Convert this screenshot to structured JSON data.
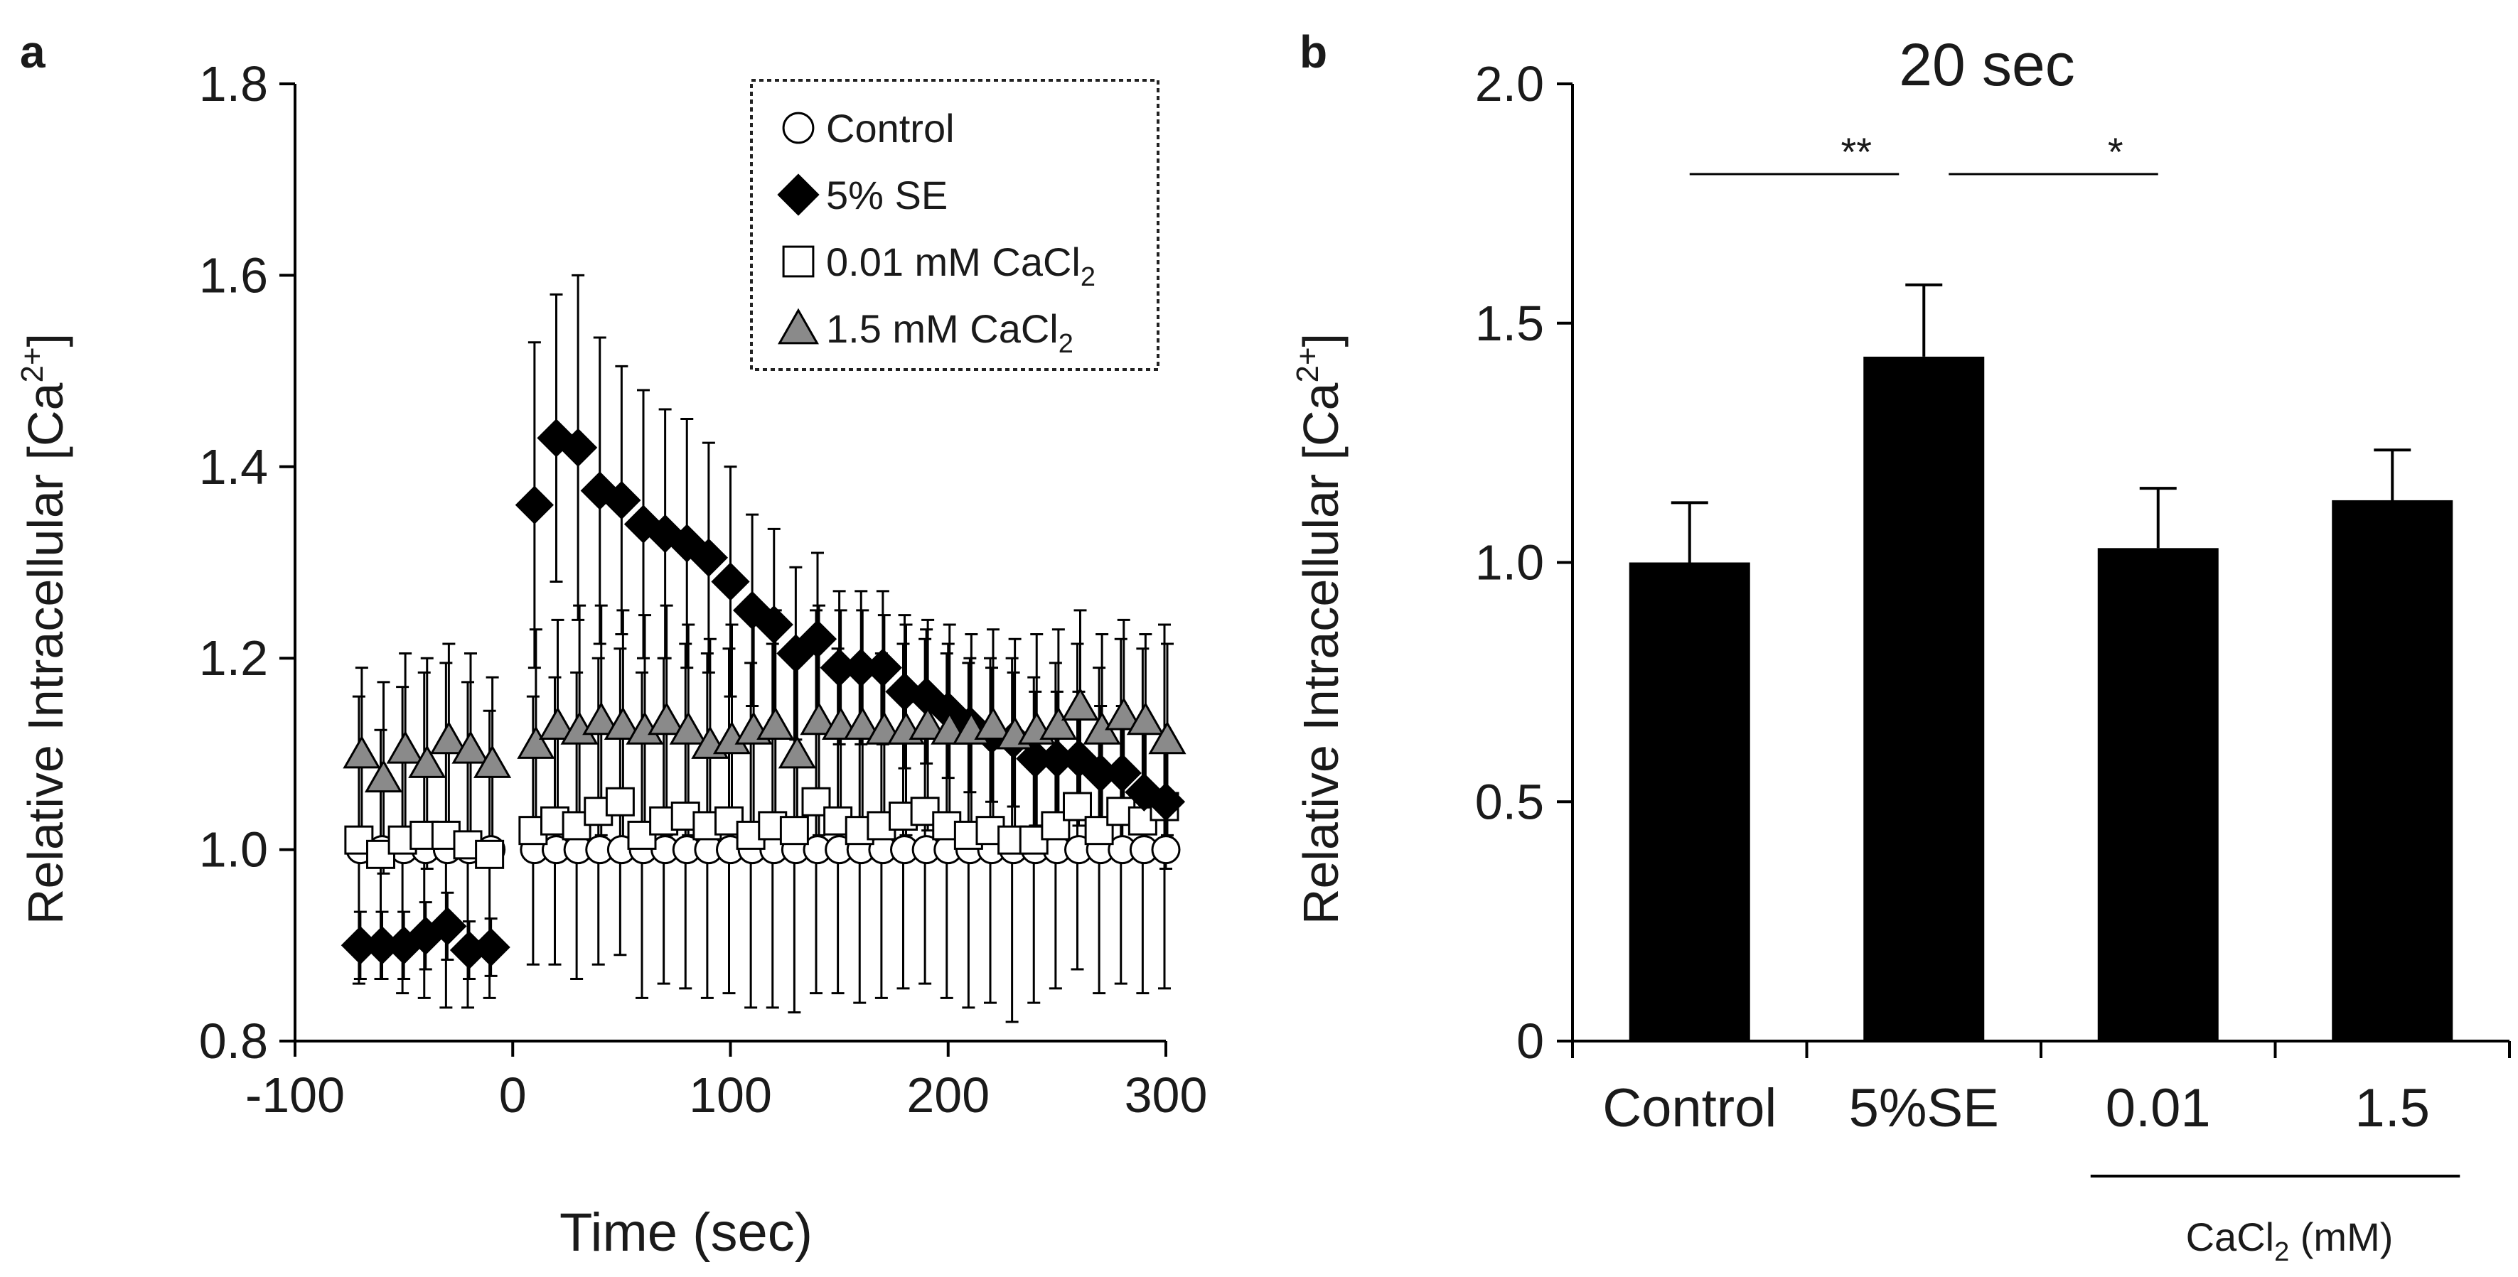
{
  "chart_data": [
    {
      "type": "scatter",
      "panel_label": "a",
      "xlabel": "Time (sec)",
      "ylabel_main": "Relative Intracellular [Ca",
      "ylabel_sup": "2+",
      "ylabel_close": "]",
      "xlim": [
        -100,
        300
      ],
      "ylim": [
        0.8,
        1.8
      ],
      "x_ticks": [
        -100,
        0,
        100,
        200,
        300
      ],
      "y_ticks": [
        0.8,
        1.0,
        1.2,
        1.4,
        1.6,
        1.8
      ],
      "x_tick_labels": [
        "-100",
        "0",
        "100",
        "200",
        "300"
      ],
      "y_tick_labels": [
        "0.8",
        "1.0",
        "1.2",
        "1.4",
        "1.6",
        "1.8"
      ],
      "legend": {
        "placement": "top-right",
        "entries": [
          {
            "marker": "circle-open",
            "label": "Control",
            "sub": "",
            "suffix": ""
          },
          {
            "marker": "diamond-filled",
            "label": "5% SE",
            "sub": "",
            "suffix": ""
          },
          {
            "marker": "square-open",
            "label": "0.01  mM CaCl",
            "sub": "2",
            "suffix": ""
          },
          {
            "marker": "triangle-gray",
            "label": "1.5   mM CaCl",
            "sub": "2",
            "suffix": ""
          }
        ]
      },
      "series": [
        {
          "name": "Control",
          "marker": "circle-open",
          "x": [
            -70,
            -60,
            -50,
            -40,
            -30,
            -20,
            -10,
            10,
            20,
            30,
            40,
            50,
            60,
            70,
            80,
            90,
            100,
            110,
            120,
            130,
            140,
            150,
            160,
            170,
            180,
            190,
            200,
            210,
            220,
            230,
            240,
            250,
            260,
            270,
            280,
            290,
            300
          ],
          "y": [
            1.0,
            1.0,
            1.0,
            1.0,
            1.0,
            1.0,
            1.0,
            1.0,
            1.0,
            1.0,
            1.0,
            1.0,
            1.0,
            1.0,
            1.0,
            1.0,
            1.0,
            1.0,
            1.0,
            1.0,
            1.0,
            1.0,
            1.0,
            1.0,
            1.0,
            1.0,
            1.0,
            1.0,
            1.0,
            1.0,
            1.0,
            1.0,
            1.0,
            1.0,
            1.0,
            1.0,
            1.0
          ],
          "err": [
            0,
            0,
            0,
            0,
            0,
            0,
            0,
            0,
            0,
            0,
            0,
            0,
            0,
            0,
            0,
            0,
            0,
            0,
            0,
            0,
            0,
            0,
            0,
            0,
            0,
            0,
            0,
            0,
            0,
            0,
            0,
            0,
            0,
            0,
            0,
            0,
            0
          ]
        },
        {
          "name": "5% SE",
          "marker": "diamond-filled",
          "x": [
            -70,
            -60,
            -50,
            -40,
            -30,
            -20,
            -10,
            10,
            20,
            30,
            40,
            50,
            60,
            70,
            80,
            90,
            100,
            110,
            120,
            130,
            140,
            150,
            160,
            170,
            180,
            190,
            200,
            210,
            220,
            230,
            240,
            250,
            260,
            270,
            280,
            290,
            300
          ],
          "y": [
            0.9,
            0.9,
            0.9,
            0.91,
            0.92,
            0.895,
            0.898,
            1.36,
            1.43,
            1.42,
            1.375,
            1.365,
            1.34,
            1.33,
            1.32,
            1.305,
            1.28,
            1.25,
            1.235,
            1.205,
            1.22,
            1.19,
            1.19,
            1.19,
            1.165,
            1.16,
            1.145,
            1.13,
            1.12,
            1.115,
            1.095,
            1.095,
            1.095,
            1.08,
            1.08,
            1.06,
            1.05
          ],
          "err": [
            0.035,
            0.035,
            0.035,
            0.035,
            0.035,
            0.03,
            0.03,
            0.17,
            0.15,
            0.18,
            0.16,
            0.14,
            0.14,
            0.13,
            0.13,
            0.12,
            0.12,
            0.1,
            0.1,
            0.09,
            0.09,
            0.08,
            0.08,
            0.08,
            0.08,
            0.07,
            0.07,
            0.07,
            0.07,
            0.07,
            0.07,
            0.07,
            0.07,
            0.07,
            0.07,
            0.07,
            0.07
          ]
        },
        {
          "name": "0.01 mM CaCl2",
          "marker": "square-open",
          "x": [
            -70,
            -60,
            -50,
            -40,
            -30,
            -20,
            -10,
            10,
            20,
            30,
            40,
            50,
            60,
            70,
            80,
            90,
            100,
            110,
            120,
            130,
            140,
            150,
            160,
            170,
            180,
            190,
            200,
            210,
            220,
            230,
            240,
            250,
            260,
            270,
            280,
            290,
            300
          ],
          "y": [
            1.01,
            0.995,
            1.01,
            1.015,
            1.015,
            1.005,
            0.995,
            1.02,
            1.03,
            1.025,
            1.04,
            1.05,
            1.015,
            1.03,
            1.035,
            1.025,
            1.03,
            1.015,
            1.025,
            1.02,
            1.05,
            1.03,
            1.02,
            1.025,
            1.035,
            1.04,
            1.025,
            1.015,
            1.02,
            1.01,
            1.01,
            1.025,
            1.045,
            1.02,
            1.04,
            1.03,
            1.045
          ],
          "err": [
            0.15,
            0.13,
            0.16,
            0.17,
            0.18,
            0.17,
            0.15,
            0.14,
            0.15,
            0.16,
            0.16,
            0.16,
            0.17,
            0.17,
            0.18,
            0.18,
            0.18,
            0.18,
            0.19,
            0.19,
            0.2,
            0.18,
            0.18,
            0.18,
            0.18,
            0.18,
            0.18,
            0.18,
            0.18,
            0.19,
            0.17,
            0.17,
            0.17,
            0.17,
            0.18,
            0.18,
            0.19
          ]
        },
        {
          "name": "1.5 mM CaCl2",
          "marker": "triangle-gray",
          "x": [
            -70,
            -60,
            -50,
            -40,
            -30,
            -20,
            -10,
            10,
            20,
            30,
            40,
            50,
            60,
            70,
            80,
            90,
            100,
            110,
            120,
            130,
            140,
            150,
            160,
            170,
            180,
            190,
            200,
            210,
            220,
            230,
            240,
            250,
            260,
            270,
            280,
            290,
            300
          ],
          "y": [
            1.1,
            1.075,
            1.105,
            1.09,
            1.115,
            1.105,
            1.09,
            1.11,
            1.13,
            1.125,
            1.135,
            1.13,
            1.125,
            1.135,
            1.125,
            1.11,
            1.115,
            1.125,
            1.13,
            1.1,
            1.135,
            1.13,
            1.13,
            1.125,
            1.125,
            1.13,
            1.125,
            1.125,
            1.13,
            1.12,
            1.125,
            1.13,
            1.15,
            1.125,
            1.14,
            1.135,
            1.115
          ],
          "err": [
            0.09,
            0.1,
            0.1,
            0.11,
            0.1,
            0.1,
            0.09,
            0.12,
            0.11,
            0.13,
            0.12,
            0.12,
            0.12,
            0.12,
            0.11,
            0.11,
            0.12,
            0.12,
            0.12,
            0.11,
            0.12,
            0.12,
            0.12,
            0.12,
            0.11,
            0.11,
            0.11,
            0.1,
            0.1,
            0.1,
            0.1,
            0.1,
            0.1,
            0.1,
            0.1,
            0.09,
            0.1
          ]
        }
      ]
    },
    {
      "type": "bar",
      "panel_label": "b",
      "title": "20 sec",
      "ylabel_main": "Relative Intracellular [Ca",
      "ylabel_sup": "2+",
      "ylabel_close": "]",
      "categories": [
        "Control",
        "5%SE",
        "0.01",
        "1.5"
      ],
      "values": [
        1.0,
        1.43,
        1.03,
        1.13
      ],
      "errors": [
        0.125,
        0.15,
        0.125,
        0.105
      ],
      "ylim": [
        0,
        2.0
      ],
      "y_ticks": [
        0,
        0.5,
        1.0,
        1.5,
        2.0
      ],
      "y_tick_labels": [
        "0",
        "0.5",
        "1.0",
        "1.5",
        "2.0"
      ],
      "group_label": {
        "main": "CaCl",
        "sub": "2",
        "suffix": " (mM)",
        "categories": [
          2,
          3
        ]
      },
      "significance": [
        {
          "from": 0,
          "to": 1,
          "label": "**"
        },
        {
          "from": 1,
          "to": 2,
          "label": "*"
        }
      ]
    }
  ]
}
